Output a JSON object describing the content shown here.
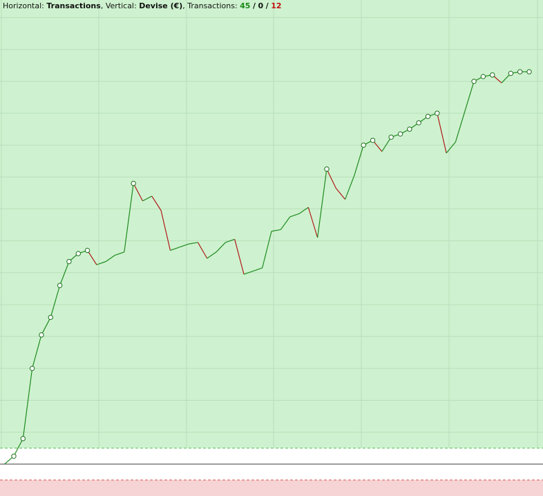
{
  "header": {
    "horizontal_label": "Horizontal:",
    "horizontal_value": "Transactions",
    "vertical_label": "Vertical:",
    "vertical_value": "Devise (€)",
    "transactions_label": "Transactions:",
    "wins": "45",
    "neutral": "0",
    "losses": "12",
    "sep": "/",
    "comma": ","
  },
  "colors": {
    "profit_zone": "#cef2cf",
    "loss_zone": "#f6d3d5",
    "grid": "#b9deba",
    "up_segment": "#1e8a1e",
    "down_segment": "#b01818",
    "baseline": "#3a3a3a",
    "marker_fill": "#ffffff",
    "marker_stroke": "#1e6e1e"
  },
  "chart_data": {
    "type": "line",
    "xlabel": "Transactions",
    "ylabel": "Devise (€)",
    "grid": true,
    "x": [
      0,
      1,
      2,
      3,
      4,
      5,
      6,
      7,
      8,
      9,
      10,
      11,
      12,
      13,
      14,
      15,
      16,
      17,
      18,
      19,
      20,
      21,
      22,
      23,
      24,
      25,
      26,
      27,
      28,
      29,
      30,
      31,
      32,
      33,
      34,
      35,
      36,
      37,
      38,
      39,
      40,
      41,
      42,
      43,
      44,
      45,
      46,
      47,
      48,
      49,
      50,
      51,
      52,
      53,
      54,
      55,
      56,
      57
    ],
    "series": [
      {
        "values": [
          0.0,
          0.5,
          1.6,
          6.0,
          8.1,
          9.2,
          11.2,
          12.7,
          13.2,
          13.4,
          12.5,
          12.7,
          13.1,
          13.3,
          17.6,
          16.5,
          16.8,
          15.9,
          13.4,
          13.6,
          13.8,
          13.9,
          12.9,
          13.3,
          13.9,
          14.1,
          11.9,
          12.1,
          12.3,
          14.6,
          14.7,
          15.5,
          15.7,
          16.1,
          14.2,
          18.5,
          17.3,
          16.6,
          18.1,
          20.0,
          20.3,
          19.6,
          20.5,
          20.7,
          21.0,
          21.4,
          21.8,
          22.0,
          19.5,
          20.2,
          22.1,
          24.0,
          24.3,
          24.4,
          23.9,
          24.5,
          24.6,
          24.6
        ],
        "markers": [
          1,
          2,
          3,
          4,
          5,
          6,
          7,
          8,
          9,
          14,
          35,
          39,
          40,
          42,
          43,
          44,
          45,
          46,
          47,
          51,
          52,
          53,
          55,
          56,
          57
        ]
      }
    ],
    "ylim": [
      -2.0,
      29.1
    ],
    "xlim": [
      -0.5,
      58.5
    ],
    "zero_value": 0,
    "profit_zone_start": 1.0,
    "loss_zone_start": -1.0
  }
}
